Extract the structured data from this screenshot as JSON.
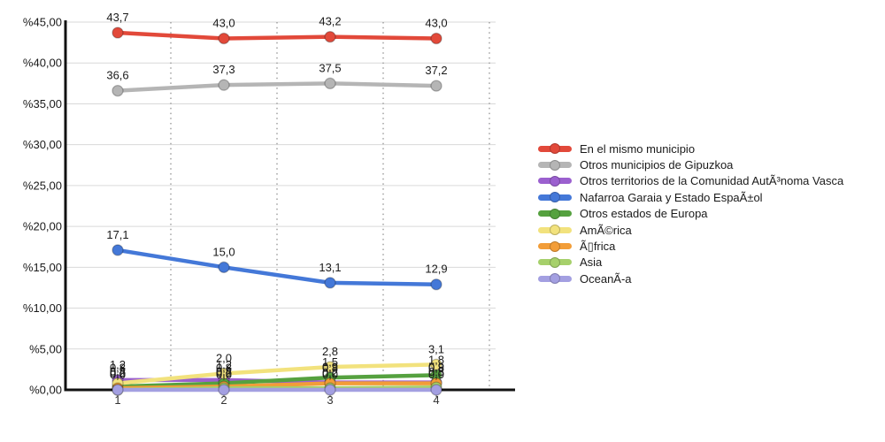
{
  "chart_data": {
    "type": "line",
    "title": "",
    "xlabel": "",
    "ylabel": "",
    "x_tick_labels": [
      "1",
      "2",
      "3",
      "4"
    ],
    "y_axis": {
      "min": 0,
      "max": 45,
      "step": 5,
      "tick_labels": [
        "%45,00",
        "%40,00",
        "%35,00",
        "%30,00",
        "%25,00",
        "%20,00",
        "%15,00",
        "%10,00",
        "%5,00",
        "%0,00"
      ],
      "tick_values": [
        45,
        40,
        35,
        30,
        25,
        20,
        15,
        10,
        5,
        0
      ]
    },
    "grid": {
      "horizontal_gridlines": true,
      "vertical_dotted_guides": true
    },
    "legend_position": "right",
    "decimal_separator": ",",
    "series": [
      {
        "name": "En el mismo municipio",
        "color": "#e2493a",
        "values": [
          43.7,
          43.0,
          43.2,
          43.0
        ],
        "point_labels": [
          "43,7",
          "43,0",
          "43,2",
          "43,0"
        ]
      },
      {
        "name": "Otros municipios de Gipuzkoa",
        "color": "#b5b5b5",
        "values": [
          36.6,
          37.3,
          37.5,
          37.2
        ],
        "point_labels": [
          "36,6",
          "37,3",
          "37,5",
          "37,2"
        ]
      },
      {
        "name": "Otros territorios de la Comunidad AutÃ³noma Vasca",
        "color": "#9b60cf",
        "values": [
          1.2,
          1.2,
          0.9,
          0.9
        ],
        "point_labels": [
          "1,2",
          "1,2",
          "0,9",
          "0,9"
        ]
      },
      {
        "name": "Nafarroa Garaia y Estado EspaÃ±ol",
        "color": "#4478d8",
        "values": [
          17.1,
          15.0,
          13.1,
          12.9
        ],
        "point_labels": [
          "17,1",
          "15,0",
          "13,1",
          "12,9"
        ]
      },
      {
        "name": "Otros estados de Europa",
        "color": "#55a13f",
        "values": [
          0.4,
          0.8,
          1.5,
          1.8
        ],
        "point_labels": [
          "0,4",
          "0,8",
          "1,5",
          "1,8"
        ]
      },
      {
        "name": "AmÃ©rica",
        "color": "#f2e27d",
        "values": [
          0.8,
          2.0,
          2.8,
          3.1
        ],
        "point_labels": [
          "0,8",
          "2,0",
          "2,8",
          "3,1"
        ]
      },
      {
        "name": "Ã▯frica",
        "color": "#f29d38",
        "values": [
          0.2,
          0.4,
          0.8,
          0.8
        ],
        "point_labels": [
          "0,2",
          "0,4",
          "0,8",
          "0,8"
        ]
      },
      {
        "name": "Asia",
        "color": "#a6d06b",
        "values": [
          0.0,
          0.2,
          0.2,
          0.3
        ],
        "point_labels": [
          "0,0",
          "0,2",
          "0,2",
          "0,3"
        ]
      },
      {
        "name": "OceanÃ-a",
        "color": "#a39fe1",
        "values": [
          0.0,
          0.0,
          0.0,
          0.0
        ],
        "point_labels": [
          "0,0",
          "0,0",
          "0,0",
          "0,0"
        ]
      }
    ]
  }
}
